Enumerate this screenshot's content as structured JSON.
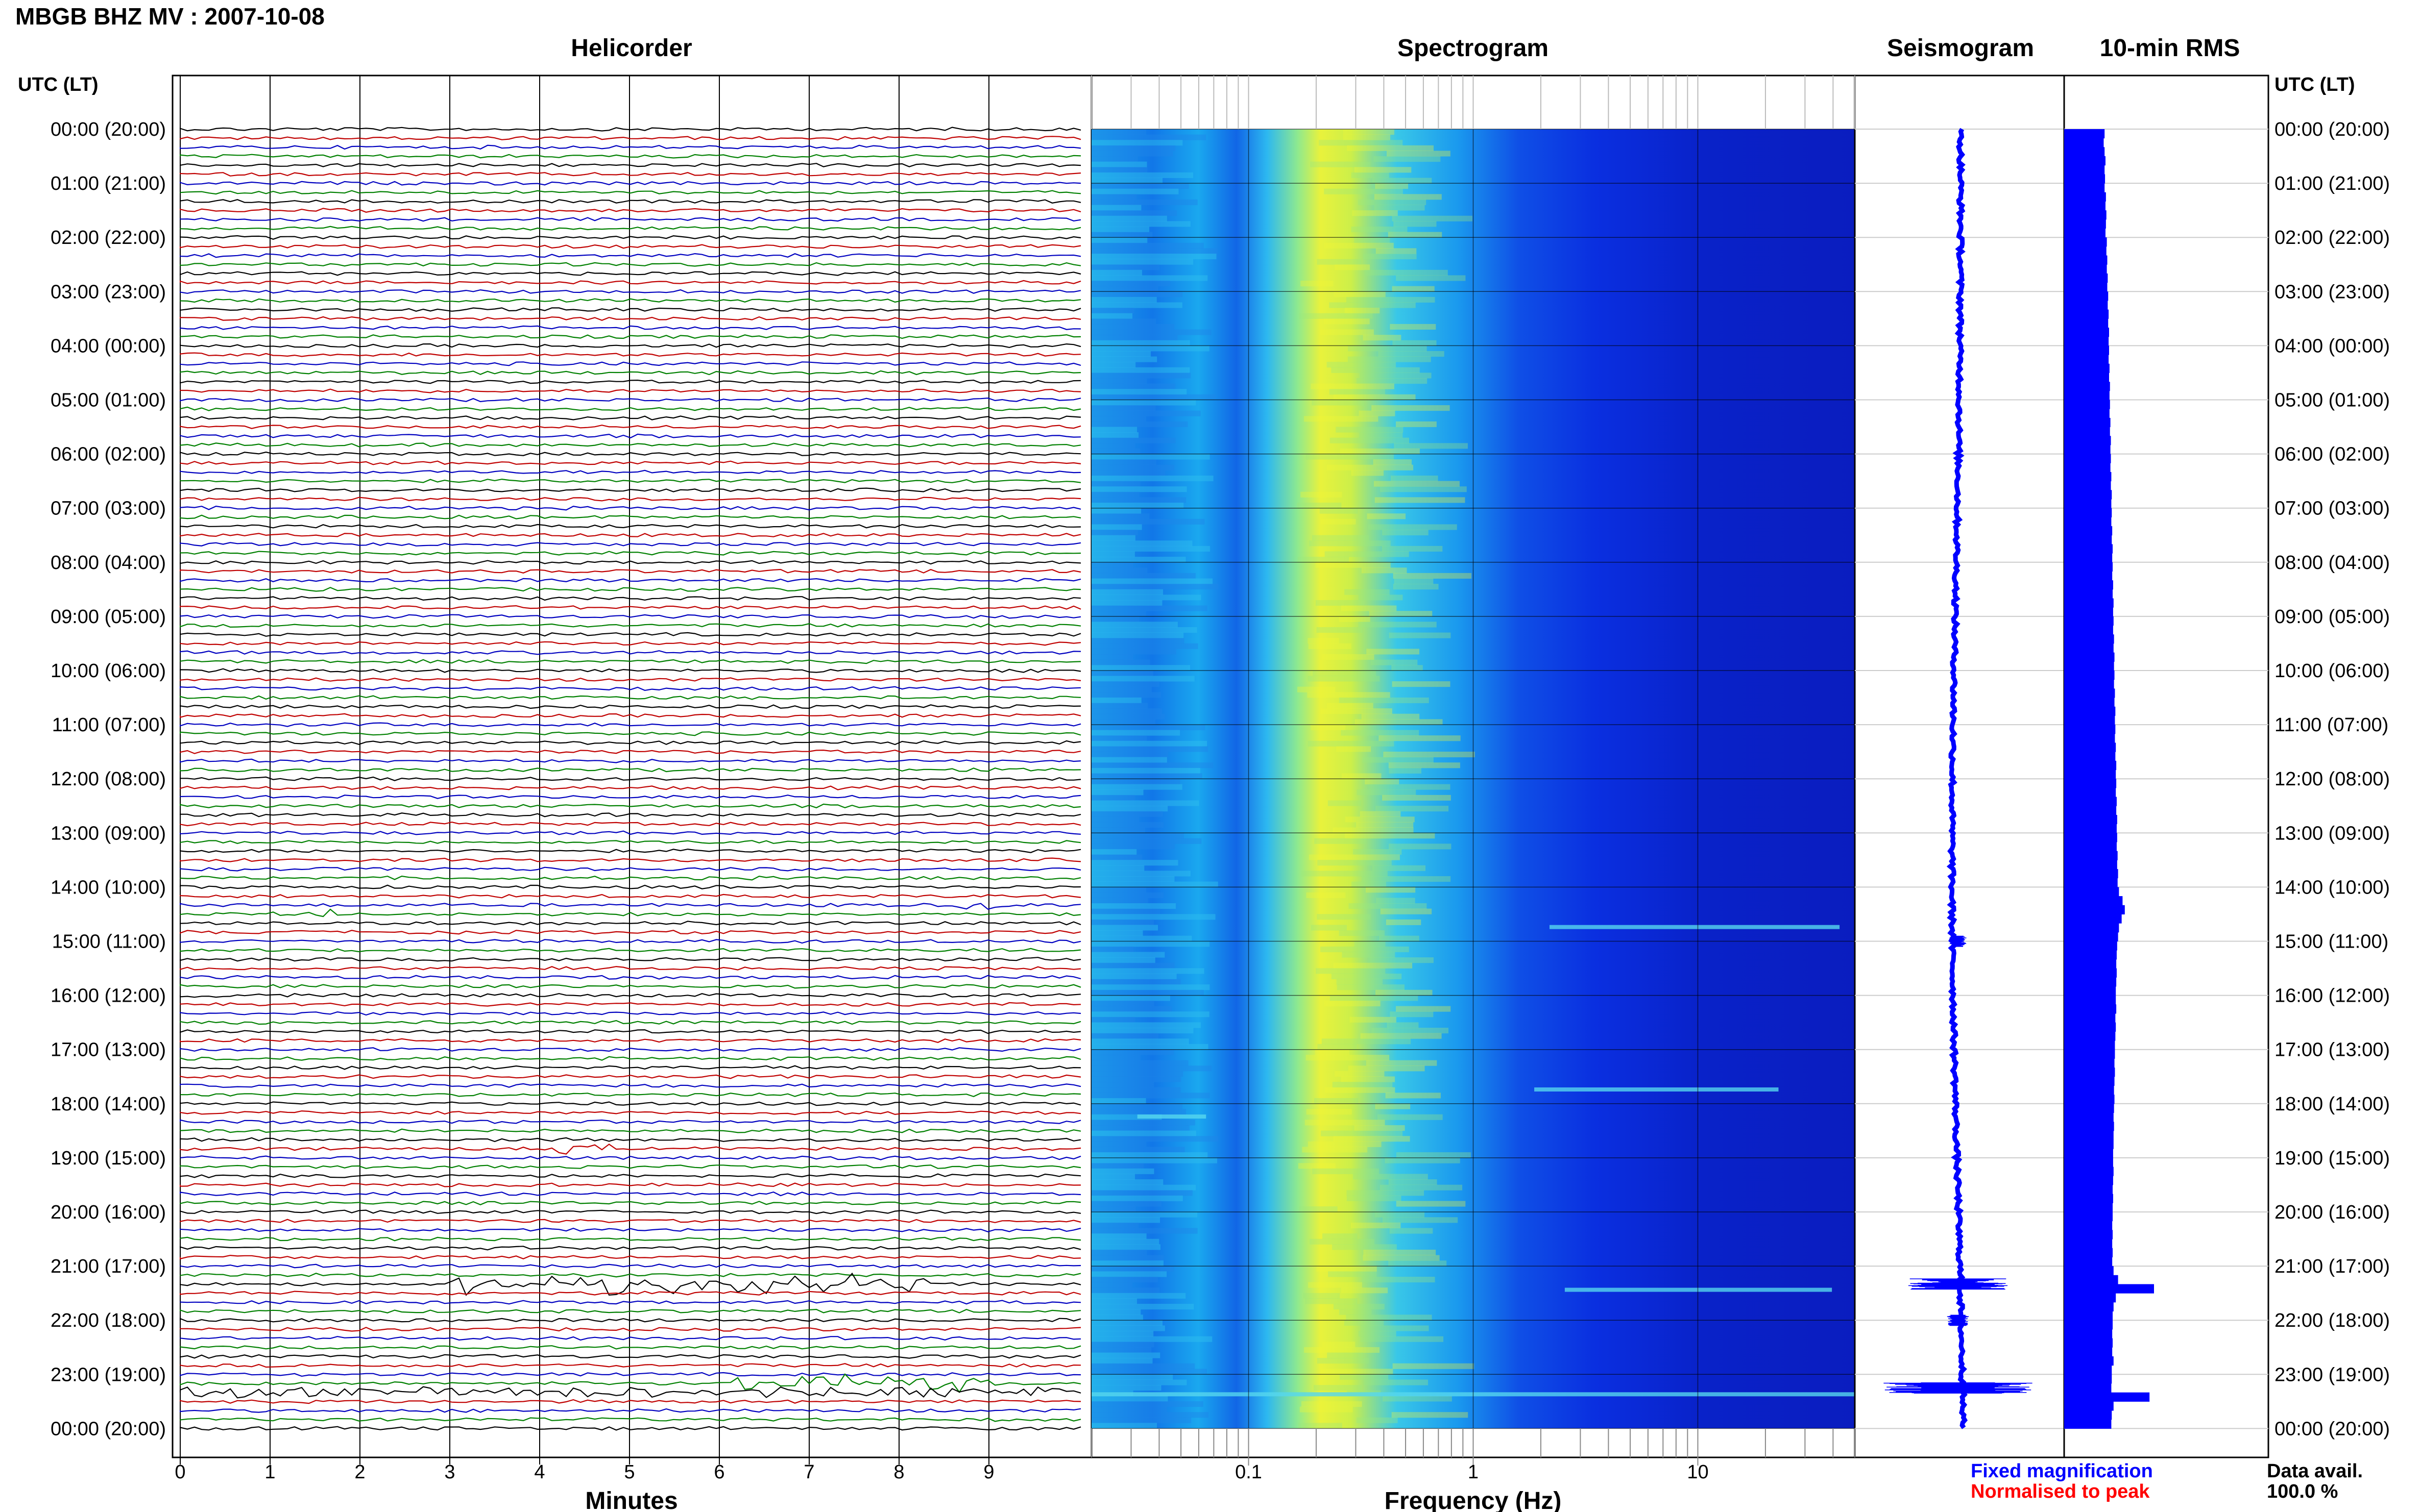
{
  "header": {
    "station_title": "MBGB BHZ MV : 2007-10-08",
    "utc_header_left": "UTC (LT)",
    "utc_header_right": "UTC (LT)"
  },
  "panels": {
    "helicorder": "Helicorder",
    "spectrogram": "Spectrogram",
    "seismogram": "Seismogram",
    "rms": "10-min RMS"
  },
  "axes": {
    "minutes_label": "Minutes",
    "frequency_label": "Frequency (Hz)",
    "minute_ticks": [
      "0",
      "1",
      "2",
      "3",
      "4",
      "5",
      "6",
      "7",
      "8",
      "9"
    ],
    "frequency_ticks": [
      "0.1",
      "1",
      "10"
    ]
  },
  "time_labels": [
    "00:00 (20:00)",
    "01:00 (21:00)",
    "02:00 (22:00)",
    "03:00 (23:00)",
    "04:00 (00:00)",
    "05:00 (01:00)",
    "06:00 (02:00)",
    "07:00 (03:00)",
    "08:00 (04:00)",
    "09:00 (05:00)",
    "10:00 (06:00)",
    "11:00 (07:00)",
    "12:00 (08:00)",
    "13:00 (09:00)",
    "14:00 (10:00)",
    "15:00 (11:00)",
    "16:00 (12:00)",
    "17:00 (13:00)",
    "18:00 (14:00)",
    "19:00 (15:00)",
    "20:00 (16:00)",
    "21:00 (17:00)",
    "22:00 (18:00)",
    "23:00 (19:00)",
    "00:00 (20:00)"
  ],
  "legend": {
    "fixed": "Fixed magnification",
    "normalised": "Normalised to peak",
    "data_avail_label": "Data avail.",
    "data_avail_value": "100.0 %"
  },
  "colors": {
    "helicorder_traces": [
      "#000000",
      "#c00000",
      "#0000c0",
      "#008000"
    ],
    "seismogram": "#0000ff",
    "rms_bars": "#0000ff",
    "legend_fixed": "#0000ff",
    "legend_normalised": "#ff0000"
  },
  "chart_data": {
    "type": "heatmap",
    "x_scale": "log",
    "xlim_hz": [
      0.02,
      50
    ],
    "time_range_hours": [
      0,
      24
    ],
    "lines_per_hour": 6,
    "peak_band_hz": [
      0.15,
      0.4
    ],
    "rms_10min": [
      0.9,
      0.88,
      0.9,
      0.92,
      0.9,
      0.91,
      0.9,
      0.93,
      0.92,
      0.94,
      0.93,
      0.92,
      0.95,
      0.94,
      0.96,
      0.95,
      0.97,
      0.96,
      0.98,
      0.97,
      0.99,
      0.98,
      1.0,
      0.99,
      1.0,
      0.99,
      1.01,
      1.0,
      1.02,
      1.01,
      1.02,
      1.01,
      1.03,
      1.02,
      1.04,
      1.03,
      1.04,
      1.03,
      1.05,
      1.04,
      1.06,
      1.05,
      1.06,
      1.05,
      1.07,
      1.06,
      1.08,
      1.07,
      1.08,
      1.07,
      1.09,
      1.08,
      1.1,
      1.09,
      1.1,
      1.09,
      1.11,
      1.1,
      1.12,
      1.11,
      1.12,
      1.11,
      1.13,
      1.12,
      1.14,
      1.13,
      1.14,
      1.13,
      1.15,
      1.14,
      1.16,
      1.15,
      1.16,
      1.15,
      1.17,
      1.16,
      1.18,
      1.17,
      1.18,
      1.17,
      1.19,
      1.18,
      1.2,
      1.19,
      1.22,
      1.3,
      1.35,
      1.28,
      1.22,
      1.2,
      1.18,
      1.17,
      1.16,
      1.17,
      1.16,
      1.15,
      1.15,
      1.16,
      1.14,
      1.15,
      1.14,
      1.13,
      1.13,
      1.12,
      1.13,
      1.12,
      1.11,
      1.12,
      1.11,
      1.1,
      1.11,
      1.1,
      1.1,
      1.09,
      1.09,
      1.1,
      1.09,
      1.08,
      1.09,
      1.08,
      1.08,
      1.07,
      1.08,
      1.07,
      1.08,
      1.07,
      1.1,
      1.2,
      2.0,
      1.15,
      1.1,
      1.08,
      1.08,
      1.07,
      1.08,
      1.07,
      1.1,
      1.06,
      1.06,
      1.05,
      1.9,
      1.1,
      1.06,
      1.05
    ],
    "events": [
      {
        "hour": 14.5,
        "minute_start": 1.0,
        "minute_end": 1.7,
        "amplitude": 0.9
      },
      {
        "hour": 14.33,
        "minute_start": 8.6,
        "minute_end": 9.3,
        "amplitude": 1.1
      },
      {
        "hour": 18.83,
        "minute_start": 4.0,
        "minute_end": 4.8,
        "amplitude": 1.0
      },
      {
        "hour": 21.33,
        "minute_start": 3.0,
        "minute_end": 8.3,
        "amplitude": 3.5
      },
      {
        "hour": 23.17,
        "minute_start": 6.0,
        "minute_end": 9.3,
        "amplitude": 2.5
      },
      {
        "hour": 23.33,
        "minute_start": 0.0,
        "minute_end": 9.9,
        "amplitude": 1.2
      }
    ],
    "seismogram_events": [
      {
        "hour": 15.0,
        "amplitude": 3
      },
      {
        "hour": 21.33,
        "amplitude": 18
      },
      {
        "hour": 22.0,
        "amplitude": 4
      },
      {
        "hour": 23.25,
        "amplitude": 26
      }
    ]
  }
}
